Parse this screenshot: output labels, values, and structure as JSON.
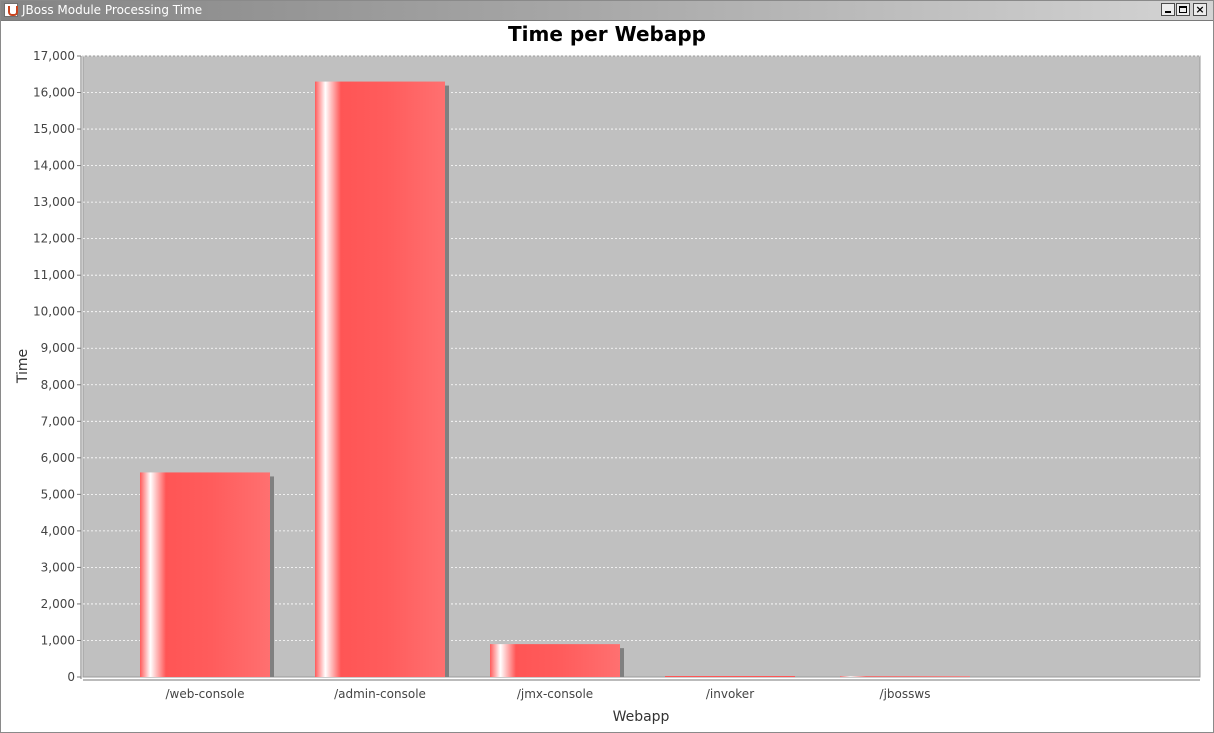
{
  "window": {
    "title": "JBoss Module Processing Time",
    "icon": "java-cup-icon",
    "controls": {
      "minimize": "minimize-icon",
      "maximize": "maximize-icon",
      "close": "close-icon"
    }
  },
  "colors": {
    "plot_background": "#c0c0c0",
    "bar": "#ff5555",
    "bar_shadow": "#808080",
    "gridline": "#ffffff"
  },
  "chart_data": {
    "type": "bar",
    "title": "Time per Webapp",
    "xlabel": "Webapp",
    "ylabel": "Time",
    "categories": [
      "/web-console",
      "/admin-console",
      "/jmx-console",
      "/invoker",
      "/jbossws"
    ],
    "values": [
      5600,
      16300,
      900,
      0,
      20
    ],
    "ylim": [
      0,
      17000
    ],
    "yticks": [
      0,
      1000,
      2000,
      3000,
      4000,
      5000,
      6000,
      7000,
      8000,
      9000,
      10000,
      11000,
      12000,
      13000,
      14000,
      15000,
      16000,
      17000
    ],
    "ytick_labels": [
      "0",
      "1,000",
      "2,000",
      "3,000",
      "4,000",
      "5,000",
      "6,000",
      "7,000",
      "8,000",
      "9,000",
      "10,000",
      "11,000",
      "12,000",
      "13,000",
      "14,000",
      "15,000",
      "16,000",
      "17,000"
    ],
    "grid": "horizontal-dashed",
    "legend": "none"
  }
}
